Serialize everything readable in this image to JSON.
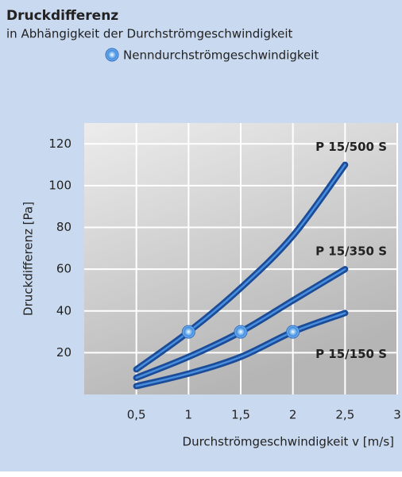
{
  "chart_data": {
    "type": "line",
    "title": "Druckdifferenz",
    "subtitle": "in Abhängigkeit der Durchströmgeschwindigkeit",
    "legend": "Nenndurchströmgeschwindigkeit",
    "x_label": "Durchströmgeschwindigkeit  v [m/s]",
    "y_label": "Druckdifferenz [Pa]",
    "x": [
      0.5,
      1,
      1.5,
      2,
      2.5
    ],
    "series": [
      {
        "name": "P 15/500 S",
        "color": "#1a4c98",
        "values": [
          12,
          30,
          51,
          76,
          110
        ]
      },
      {
        "name": "P 15/350 S",
        "color": "#1a4c98",
        "values": [
          8,
          18,
          30,
          45,
          60
        ]
      },
      {
        "name": "P 15/150 S",
        "color": "#1a4c98",
        "values": [
          4,
          10,
          18,
          30,
          39
        ]
      }
    ],
    "nominal": [
      {
        "x": 1,
        "y": 30
      },
      {
        "x": 1.5,
        "y": 30
      },
      {
        "x": 2,
        "y": 30
      }
    ],
    "xlim": [
      0,
      3
    ],
    "ylim": [
      0,
      130
    ],
    "xticks": [
      {
        "value": 0.5,
        "label": "0,5"
      },
      1,
      {
        "value": 1.5,
        "label": "1,5"
      },
      2,
      {
        "value": 2.5,
        "label": "2,5"
      },
      3
    ],
    "yticks": [
      20,
      40,
      60,
      80,
      100,
      120
    ],
    "grid": true
  }
}
